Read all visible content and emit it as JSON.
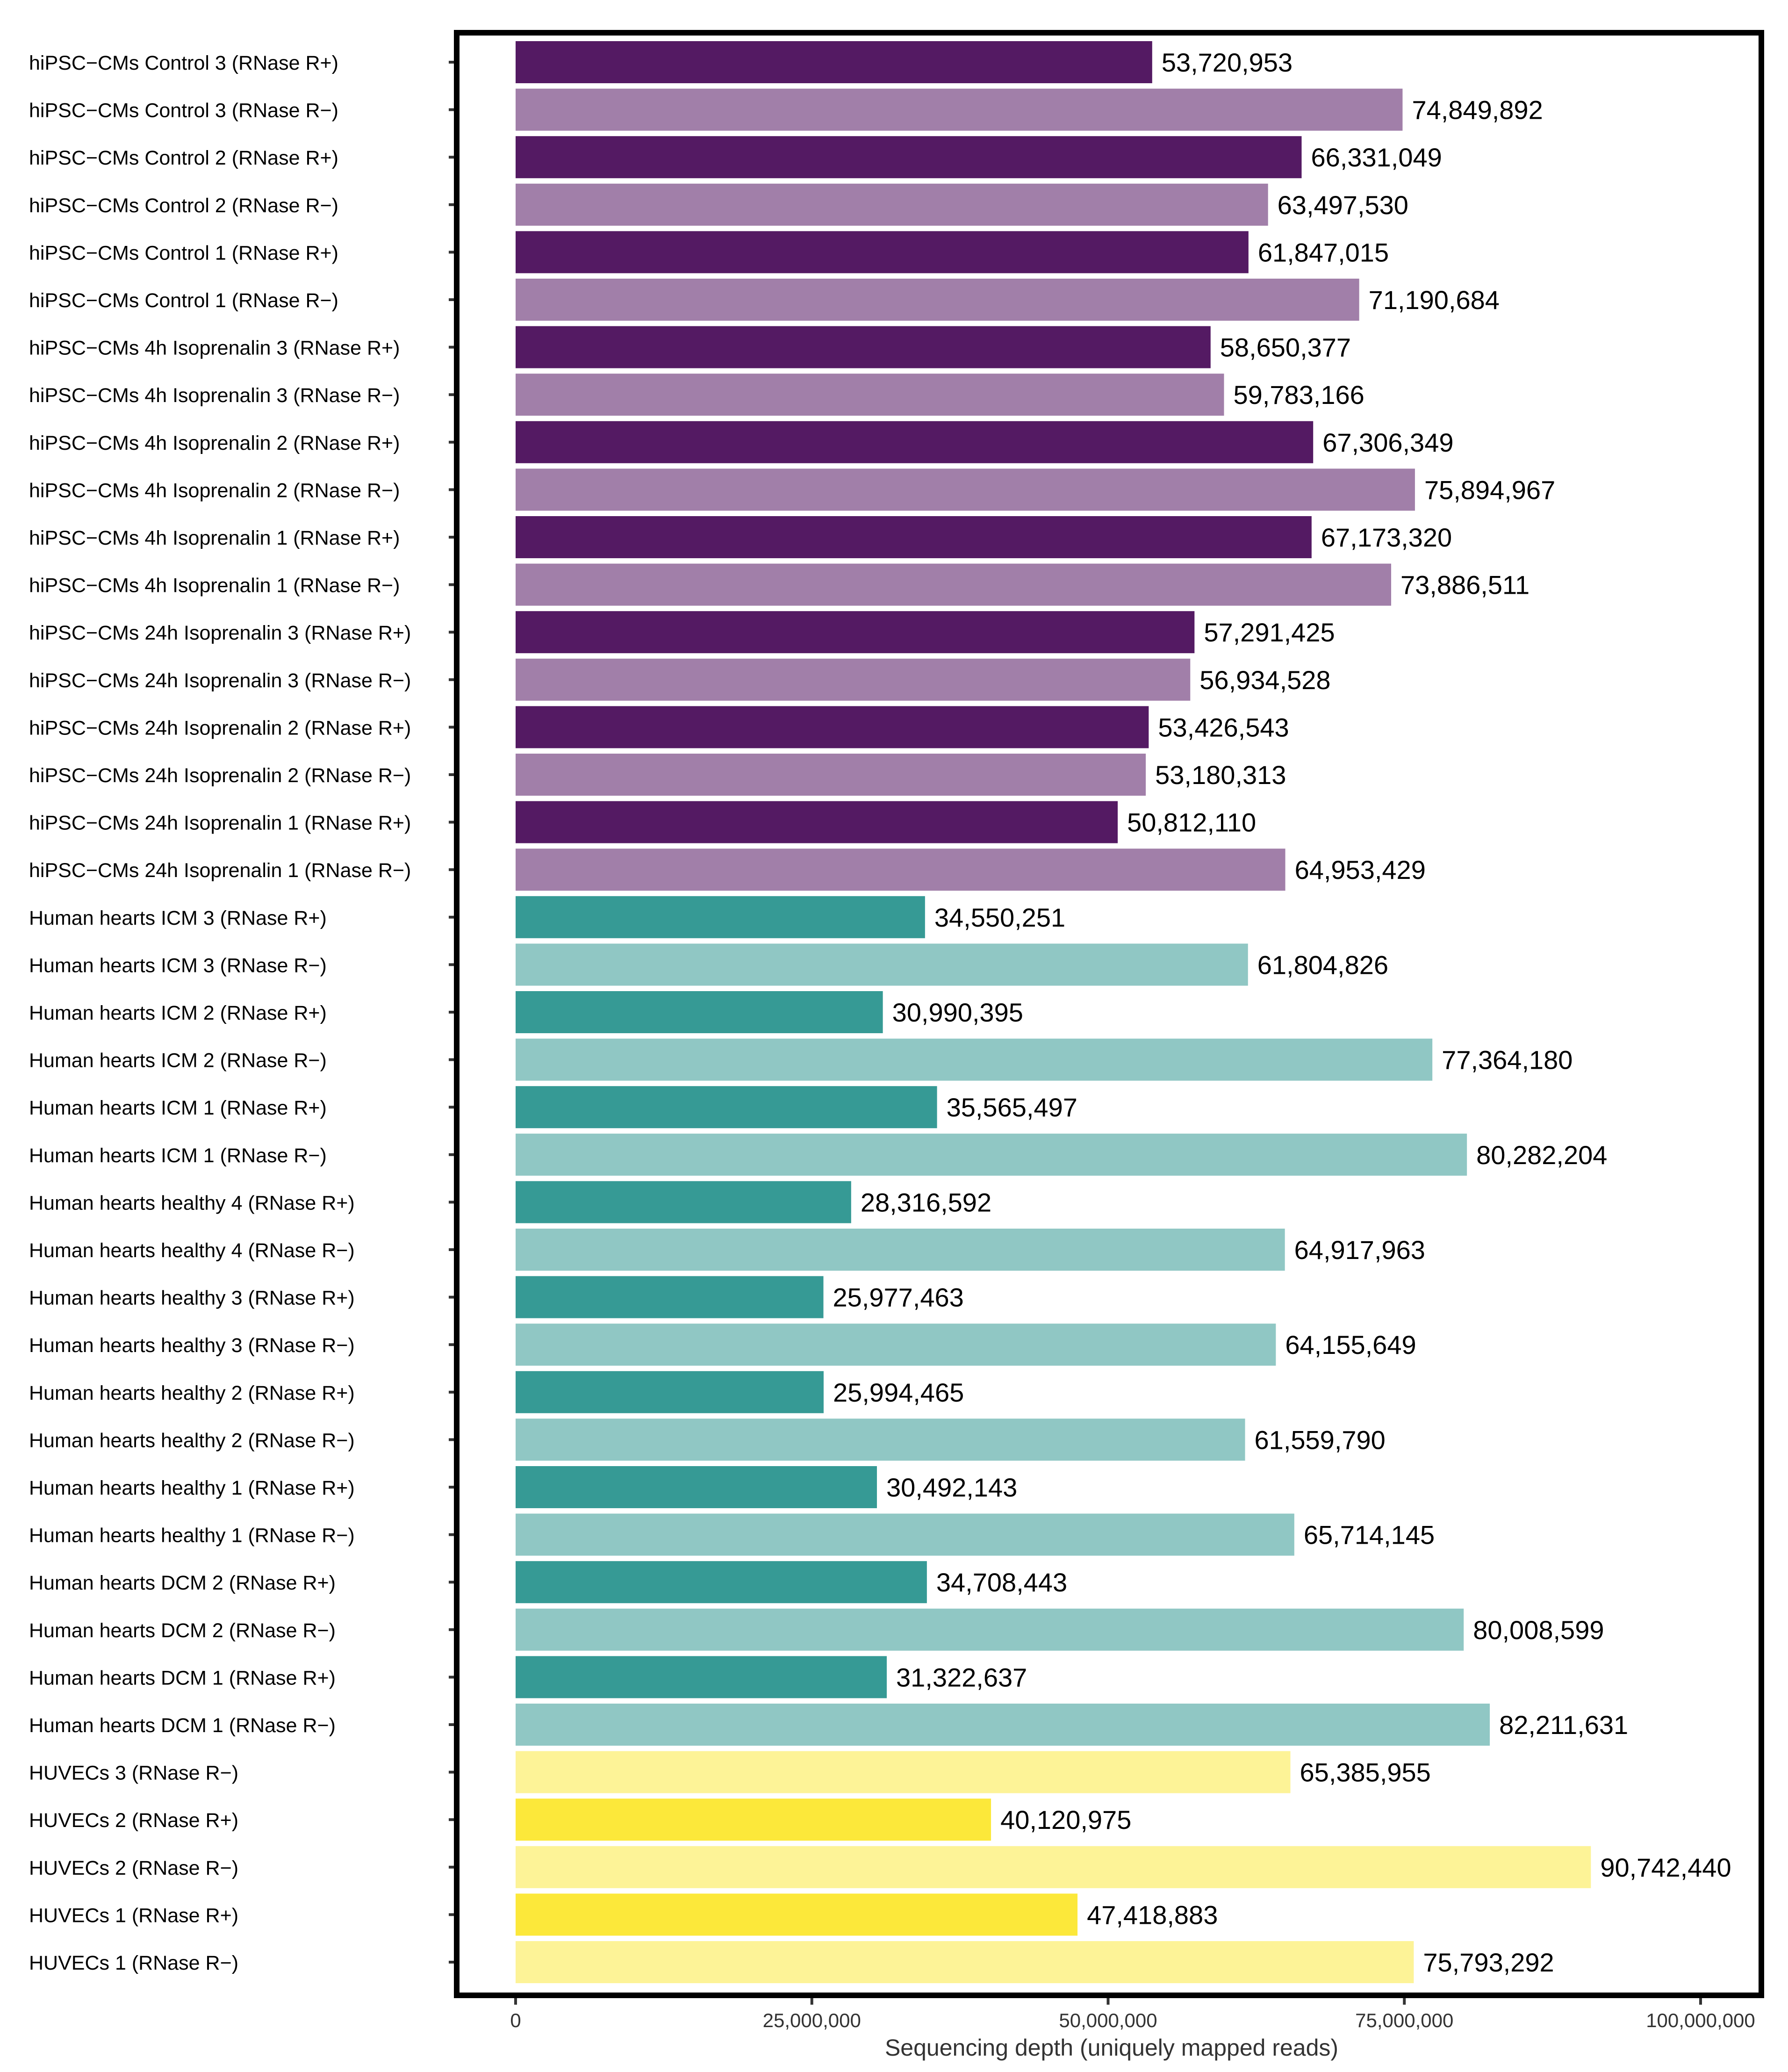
{
  "chart_data": {
    "type": "bar",
    "orientation": "horizontal",
    "title": "",
    "xlabel": "Sequencing depth (uniquely mapped reads)",
    "ylabel": "",
    "xlim": [
      0,
      100000000
    ],
    "x_ticks": [
      0,
      25000000,
      50000000,
      75000000,
      100000000
    ],
    "x_tick_labels": [
      "0",
      "25,000,000",
      "50,000,000",
      "75,000,000",
      "100,000,000"
    ],
    "grid": false,
    "legend": null,
    "colors": {
      "hiPSC-CMs RNase R+": "#541a63",
      "hiPSC-CMs RNase R-": "#a17fa9",
      "Human hearts RNase R+": "#369a95",
      "Human hearts RNase R-": "#90c7c4",
      "HUVECs RNase R+": "#fce83a",
      "HUVECs RNase R-": "#fdf397"
    },
    "bars": [
      {
        "label": "hiPSC−CMs Control 3 (RNase R+)",
        "value": 53720953,
        "value_label": "53,720,953",
        "group": "hiPSC-CMs RNase R+"
      },
      {
        "label": "hiPSC−CMs Control 3 (RNase R−)",
        "value": 74849892,
        "value_label": "74,849,892",
        "group": "hiPSC-CMs RNase R-"
      },
      {
        "label": "hiPSC−CMs Control 2 (RNase R+)",
        "value": 66331049,
        "value_label": "66,331,049",
        "group": "hiPSC-CMs RNase R+"
      },
      {
        "label": "hiPSC−CMs Control 2 (RNase R−)",
        "value": 63497530,
        "value_label": "63,497,530",
        "group": "hiPSC-CMs RNase R-"
      },
      {
        "label": "hiPSC−CMs Control 1 (RNase R+)",
        "value": 61847015,
        "value_label": "61,847,015",
        "group": "hiPSC-CMs RNase R+"
      },
      {
        "label": "hiPSC−CMs Control 1 (RNase R−)",
        "value": 71190684,
        "value_label": "71,190,684",
        "group": "hiPSC-CMs RNase R-"
      },
      {
        "label": "hiPSC−CMs 4h Isoprenalin 3 (RNase R+)",
        "value": 58650377,
        "value_label": "58,650,377",
        "group": "hiPSC-CMs RNase R+"
      },
      {
        "label": "hiPSC−CMs 4h Isoprenalin 3 (RNase R−)",
        "value": 59783166,
        "value_label": "59,783,166",
        "group": "hiPSC-CMs RNase R-"
      },
      {
        "label": "hiPSC−CMs 4h Isoprenalin 2 (RNase R+)",
        "value": 67306349,
        "value_label": "67,306,349",
        "group": "hiPSC-CMs RNase R+"
      },
      {
        "label": "hiPSC−CMs 4h Isoprenalin 2 (RNase R−)",
        "value": 75894967,
        "value_label": "75,894,967",
        "group": "hiPSC-CMs RNase R-"
      },
      {
        "label": "hiPSC−CMs 4h Isoprenalin 1 (RNase R+)",
        "value": 67173320,
        "value_label": "67,173,320",
        "group": "hiPSC-CMs RNase R+"
      },
      {
        "label": "hiPSC−CMs 4h Isoprenalin 1 (RNase R−)",
        "value": 73886511,
        "value_label": "73,886,511",
        "group": "hiPSC-CMs RNase R-"
      },
      {
        "label": "hiPSC−CMs 24h Isoprenalin 3 (RNase R+)",
        "value": 57291425,
        "value_label": "57,291,425",
        "group": "hiPSC-CMs RNase R+"
      },
      {
        "label": "hiPSC−CMs 24h Isoprenalin 3 (RNase R−)",
        "value": 56934528,
        "value_label": "56,934,528",
        "group": "hiPSC-CMs RNase R-"
      },
      {
        "label": "hiPSC−CMs 24h Isoprenalin 2 (RNase R+)",
        "value": 53426543,
        "value_label": "53,426,543",
        "group": "hiPSC-CMs RNase R+"
      },
      {
        "label": "hiPSC−CMs 24h Isoprenalin 2 (RNase R−)",
        "value": 53180313,
        "value_label": "53,180,313",
        "group": "hiPSC-CMs RNase R-"
      },
      {
        "label": "hiPSC−CMs 24h Isoprenalin 1 (RNase R+)",
        "value": 50812110,
        "value_label": "50,812,110",
        "group": "hiPSC-CMs RNase R+"
      },
      {
        "label": "hiPSC−CMs 24h Isoprenalin 1 (RNase R−)",
        "value": 64953429,
        "value_label": "64,953,429",
        "group": "hiPSC-CMs RNase R-"
      },
      {
        "label": "Human hearts ICM 3 (RNase R+)",
        "value": 34550251,
        "value_label": "34,550,251",
        "group": "Human hearts RNase R+"
      },
      {
        "label": "Human hearts ICM 3 (RNase R−)",
        "value": 61804826,
        "value_label": "61,804,826",
        "group": "Human hearts RNase R-"
      },
      {
        "label": "Human hearts ICM 2 (RNase R+)",
        "value": 30990395,
        "value_label": "30,990,395",
        "group": "Human hearts RNase R+"
      },
      {
        "label": "Human hearts ICM 2 (RNase R−)",
        "value": 77364180,
        "value_label": "77,364,180",
        "group": "Human hearts RNase R-"
      },
      {
        "label": "Human hearts ICM 1 (RNase R+)",
        "value": 35565497,
        "value_label": "35,565,497",
        "group": "Human hearts RNase R+"
      },
      {
        "label": "Human hearts ICM 1 (RNase R−)",
        "value": 80282204,
        "value_label": "80,282,204",
        "group": "Human hearts RNase R-"
      },
      {
        "label": "Human hearts healthy 4 (RNase R+)",
        "value": 28316592,
        "value_label": "28,316,592",
        "group": "Human hearts RNase R+"
      },
      {
        "label": "Human hearts healthy 4 (RNase R−)",
        "value": 64917963,
        "value_label": "64,917,963",
        "group": "Human hearts RNase R-"
      },
      {
        "label": "Human hearts healthy 3 (RNase R+)",
        "value": 25977463,
        "value_label": "25,977,463",
        "group": "Human hearts RNase R+"
      },
      {
        "label": "Human hearts healthy 3 (RNase R−)",
        "value": 64155649,
        "value_label": "64,155,649",
        "group": "Human hearts RNase R-"
      },
      {
        "label": "Human hearts healthy 2 (RNase R+)",
        "value": 25994465,
        "value_label": "25,994,465",
        "group": "Human hearts RNase R+"
      },
      {
        "label": "Human hearts healthy 2 (RNase R−)",
        "value": 61559790,
        "value_label": "61,559,790",
        "group": "Human hearts RNase R-"
      },
      {
        "label": "Human hearts healthy 1 (RNase R+)",
        "value": 30492143,
        "value_label": "30,492,143",
        "group": "Human hearts RNase R+"
      },
      {
        "label": "Human hearts healthy 1 (RNase R−)",
        "value": 65714145,
        "value_label": "65,714,145",
        "group": "Human hearts RNase R-"
      },
      {
        "label": "Human hearts DCM 2 (RNase R+)",
        "value": 34708443,
        "value_label": "34,708,443",
        "group": "Human hearts RNase R+"
      },
      {
        "label": "Human hearts DCM 2 (RNase R−)",
        "value": 80008599,
        "value_label": "80,008,599",
        "group": "Human hearts RNase R-"
      },
      {
        "label": "Human hearts DCM 1 (RNase R+)",
        "value": 31322637,
        "value_label": "31,322,637",
        "group": "Human hearts RNase R+"
      },
      {
        "label": "Human hearts DCM 1 (RNase R−)",
        "value": 82211631,
        "value_label": "82,211,631",
        "group": "Human hearts RNase R-"
      },
      {
        "label": "HUVECs 3 (RNase R−)",
        "value": 65385955,
        "value_label": "65,385,955",
        "group": "HUVECs RNase R-"
      },
      {
        "label": "HUVECs 2 (RNase R+)",
        "value": 40120975,
        "value_label": "40,120,975",
        "group": "HUVECs RNase R+"
      },
      {
        "label": "HUVECs 2 (RNase R−)",
        "value": 90742440,
        "value_label": "90,742,440",
        "group": "HUVECs RNase R-"
      },
      {
        "label": "HUVECs 1 (RNase R+)",
        "value": 47418883,
        "value_label": "47,418,883",
        "group": "HUVECs RNase R+"
      },
      {
        "label": "HUVECs 1 (RNase R−)",
        "value": 75793292,
        "value_label": "75,793,292",
        "group": "HUVECs RNase R-"
      }
    ]
  }
}
